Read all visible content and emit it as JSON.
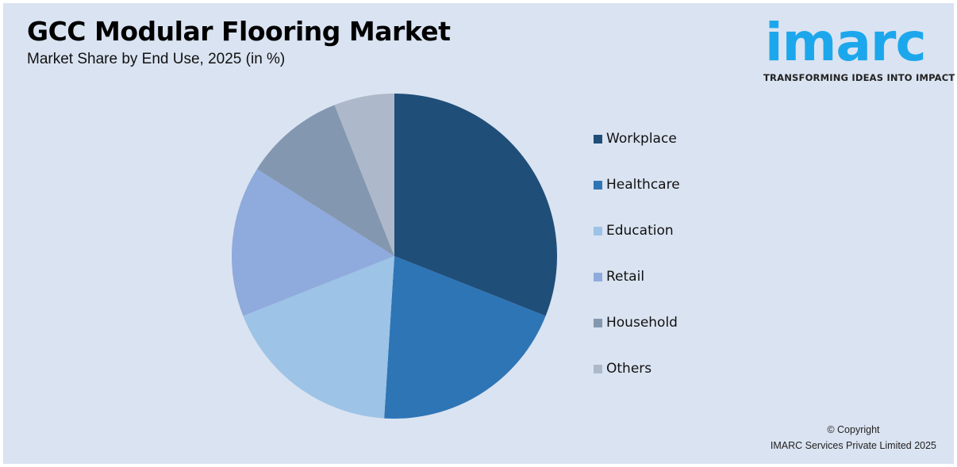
{
  "header": {
    "title": "GCC Modular Flooring Market",
    "subtitle": "Market Share by End Use, 2025 (in %)"
  },
  "logo": {
    "wordmark": "imarc",
    "tagline": "TRANSFORMING IDEAS INTO IMPACT",
    "color": "#1ca7ec"
  },
  "footer": {
    "line1": "© Copyright",
    "line2": "IMARC Services Private Limited 2025"
  },
  "chart_data": {
    "type": "pie",
    "title": "GCC Modular Flooring Market",
    "subtitle": "Market Share by End Use, 2025 (in %)",
    "categories": [
      "Workplace",
      "Healthcare",
      "Education",
      "Retail",
      "Household",
      "Others"
    ],
    "values": [
      31,
      20,
      18,
      15,
      10,
      6
    ],
    "colors": [
      "#1f4e79",
      "#2e75b6",
      "#9dc3e6",
      "#8faadc",
      "#8497b0",
      "#adb9ca"
    ],
    "start_angle_deg": 0,
    "direction": "clockwise",
    "legend_position": "right",
    "data_labels": false
  }
}
